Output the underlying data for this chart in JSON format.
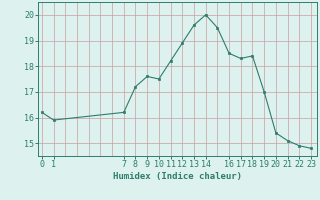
{
  "xlabel": "Humidex (Indice chaleur)",
  "ylabel": "",
  "x_values": [
    0,
    1,
    7,
    8,
    9,
    10,
    11,
    12,
    13,
    14,
    15,
    16,
    17,
    18,
    19,
    20,
    21,
    22,
    23
  ],
  "y_values": [
    16.2,
    15.9,
    16.2,
    17.2,
    17.6,
    17.5,
    18.2,
    18.9,
    19.6,
    20.0,
    19.5,
    18.5,
    18.3,
    18.4,
    17.0,
    15.4,
    15.1,
    14.9,
    14.8
  ],
  "x_ticks": [
    0,
    1,
    7,
    8,
    9,
    10,
    11,
    12,
    13,
    14,
    16,
    17,
    18,
    19,
    20,
    21,
    22,
    23
  ],
  "y_ticks": [
    15,
    16,
    17,
    18,
    19,
    20
  ],
  "ylim": [
    14.5,
    20.5
  ],
  "xlim": [
    -0.3,
    23.5
  ],
  "line_color": "#2d7d6d",
  "marker_color": "#2d7d6d",
  "bg_color": "#ddf2ee",
  "grid_color": "#c8a0a0",
  "xlabel_fontsize": 6.5,
  "tick_fontsize": 6.0
}
